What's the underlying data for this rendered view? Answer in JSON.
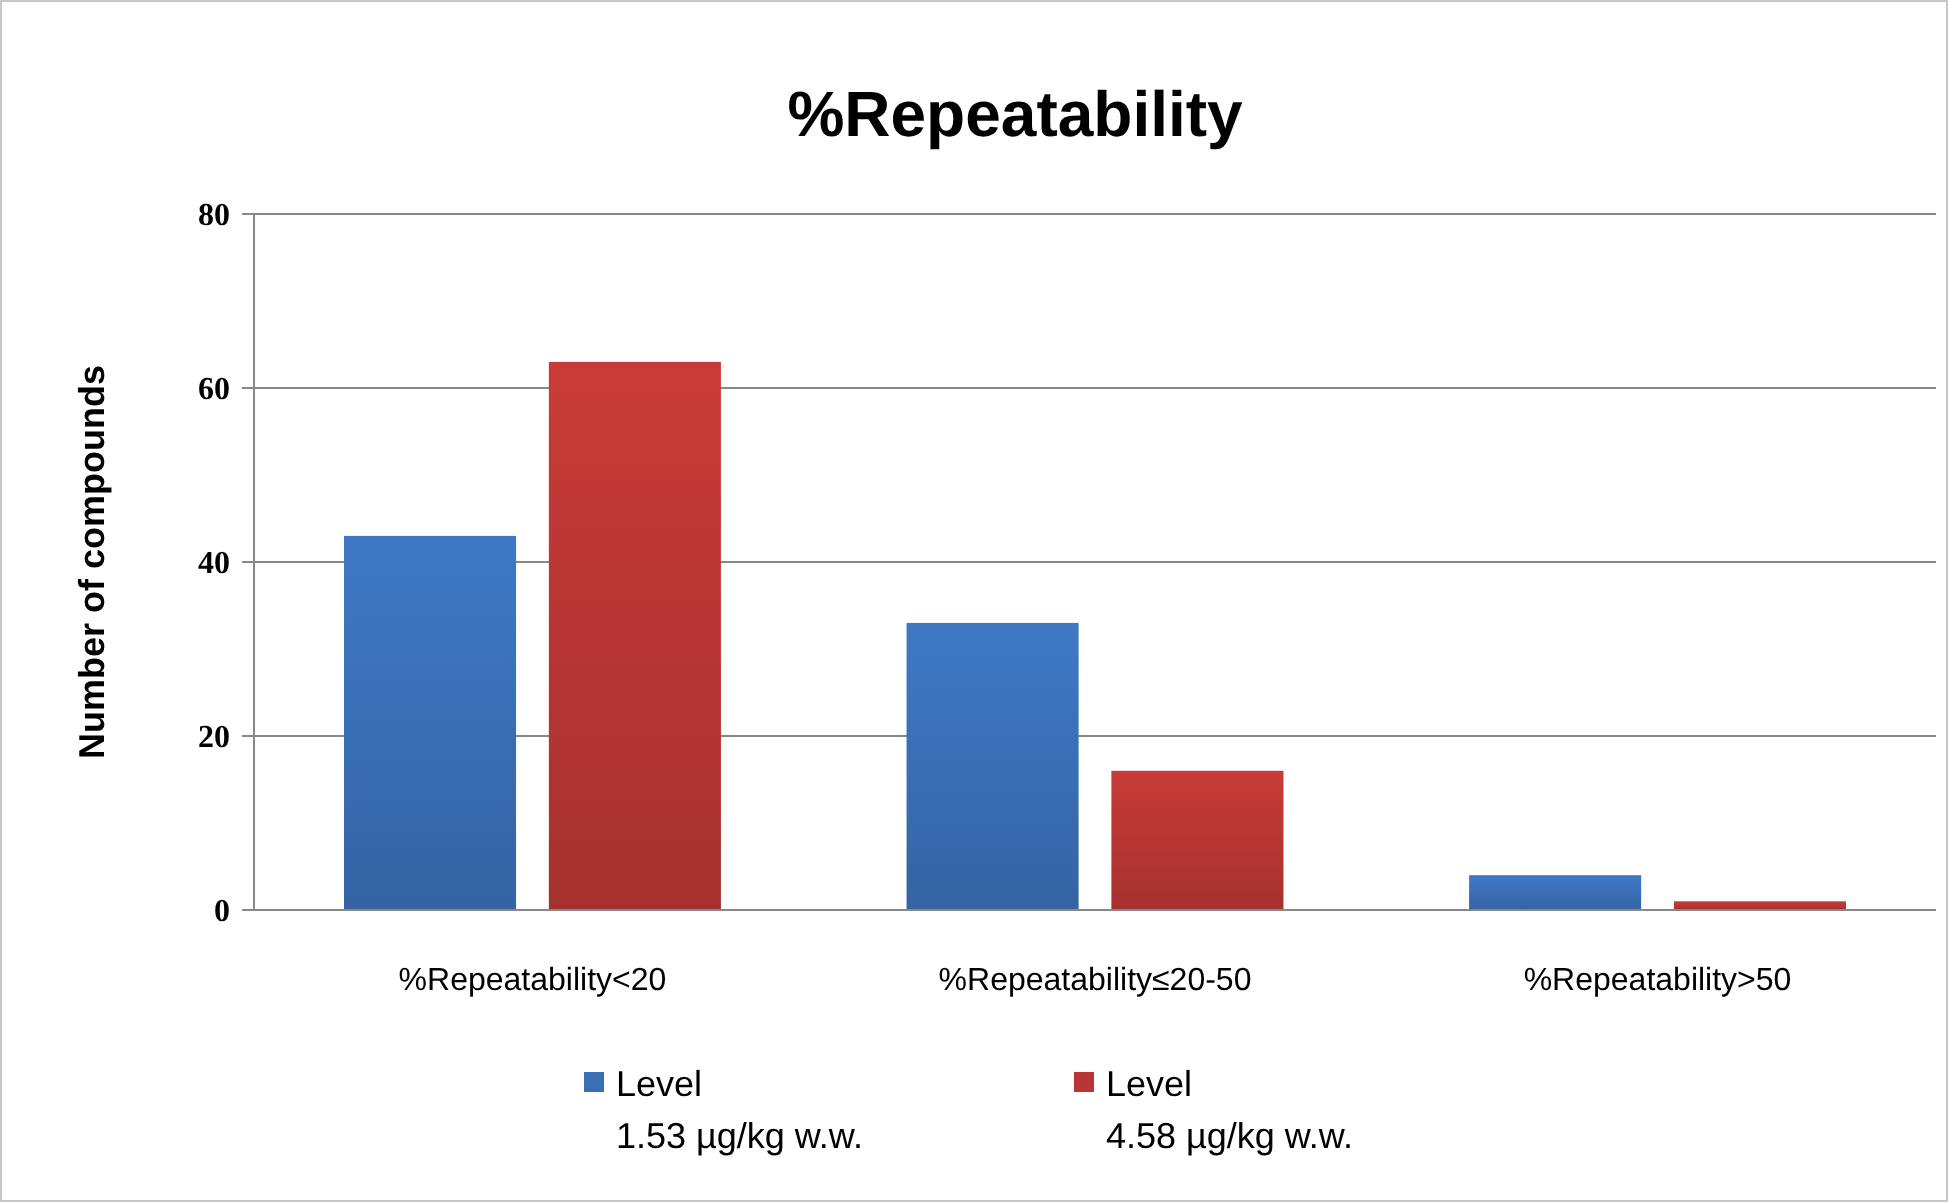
{
  "chart_data": {
    "type": "bar",
    "title": "%Repeatability",
    "ylabel": "Number of compounds",
    "categories": [
      "%Repeatability<20",
      "%Repeatability≤20-50",
      "%Repeatability>50"
    ],
    "series": [
      {
        "name": "Level\n1.53 µg/kg w.w.",
        "color": "#3a6fb5",
        "values": [
          43,
          33,
          4
        ]
      },
      {
        "name": "Level\n4.58 µg/kg w.w.",
        "color": "#b83633",
        "values": [
          63,
          16,
          1
        ]
      }
    ],
    "ylim": [
      0,
      80
    ],
    "yticks": [
      0,
      20,
      40,
      60,
      80
    ],
    "grid": "y",
    "legend": "bottom"
  }
}
